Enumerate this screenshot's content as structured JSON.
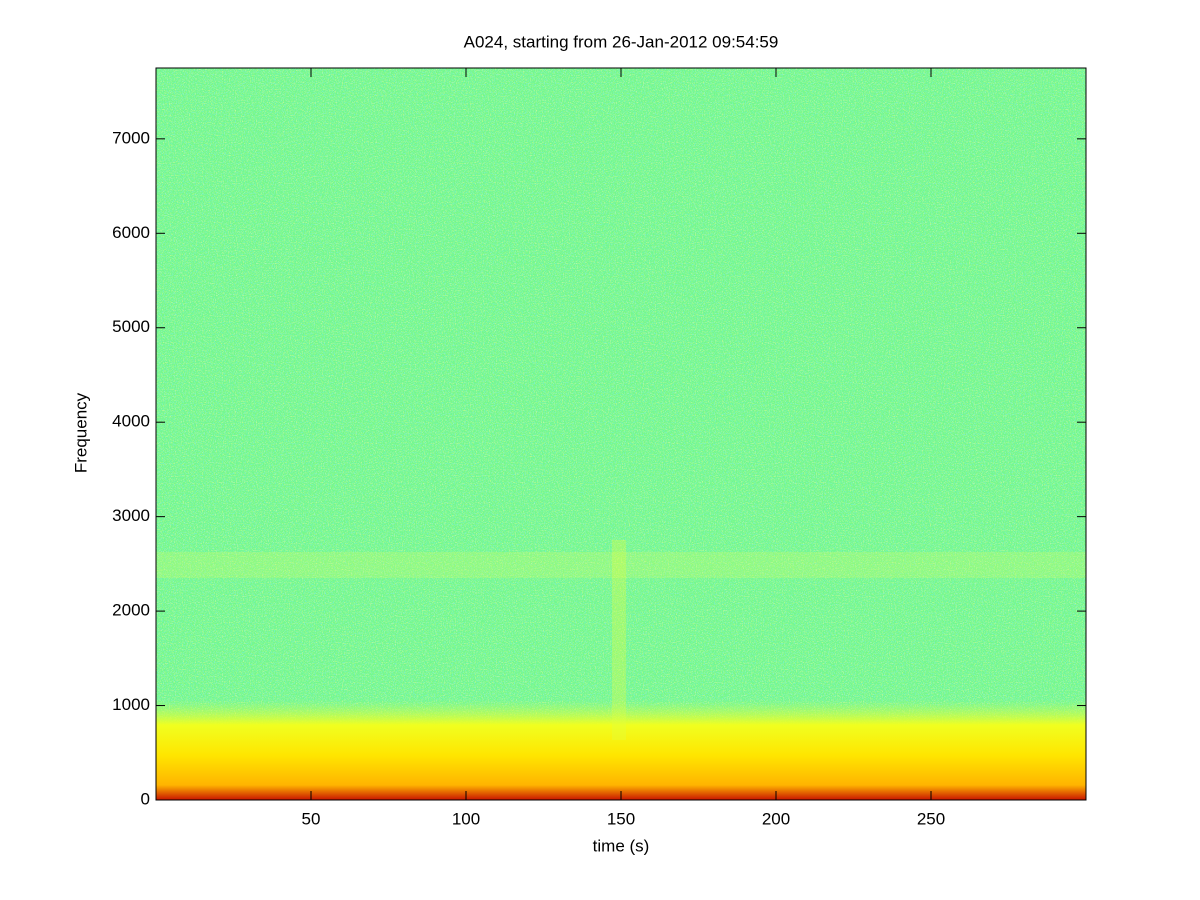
{
  "chart_data": {
    "type": "spectrogram",
    "title": "A024, starting from 26-Jan-2012 09:54:59",
    "xlabel": "time (s)",
    "ylabel": "Frequency",
    "xlim": [
      0,
      300
    ],
    "xticks": [
      50,
      100,
      150,
      200,
      250
    ],
    "ylim": [
      0,
      7750
    ],
    "yticks": [
      0,
      1000,
      2000,
      3000,
      4000,
      5000,
      6000,
      7000
    ]
  }
}
